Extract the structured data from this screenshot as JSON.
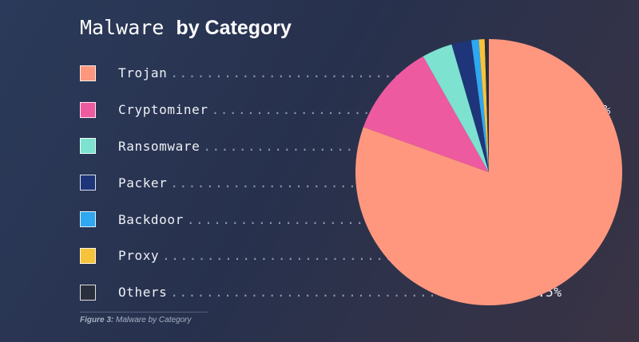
{
  "title": {
    "prefix": "Malware",
    "emphasis": "by Category"
  },
  "caption": {
    "label": "Figure 3:",
    "text": "Malware by Category"
  },
  "chart_data": {
    "type": "pie",
    "title": "Malware by Category",
    "slices": [
      {
        "label": "Trojan",
        "value": 80.5,
        "display": "80.5%",
        "color": "#fe977e"
      },
      {
        "label": "Cryptominer",
        "value": 11.3,
        "display": "11.3%",
        "color": "#ee5aa0"
      },
      {
        "label": "Ransomware",
        "value": 3.7,
        "display": "3.7%",
        "color": "#7de2cf"
      },
      {
        "label": "Packer",
        "value": 2.4,
        "display": "2.4%",
        "color": "#1f3579"
      },
      {
        "label": "Backdoor",
        "value": 0.9,
        "display": "0.9%",
        "color": "#2ea8f0"
      },
      {
        "label": "Proxy",
        "value": 0.7,
        "display": "0.7%",
        "color": "#f6c33a"
      },
      {
        "label": "Others",
        "value": 0.5,
        "display": "0.5%",
        "color": "#2a2f3d"
      }
    ],
    "legend_position": "left"
  }
}
